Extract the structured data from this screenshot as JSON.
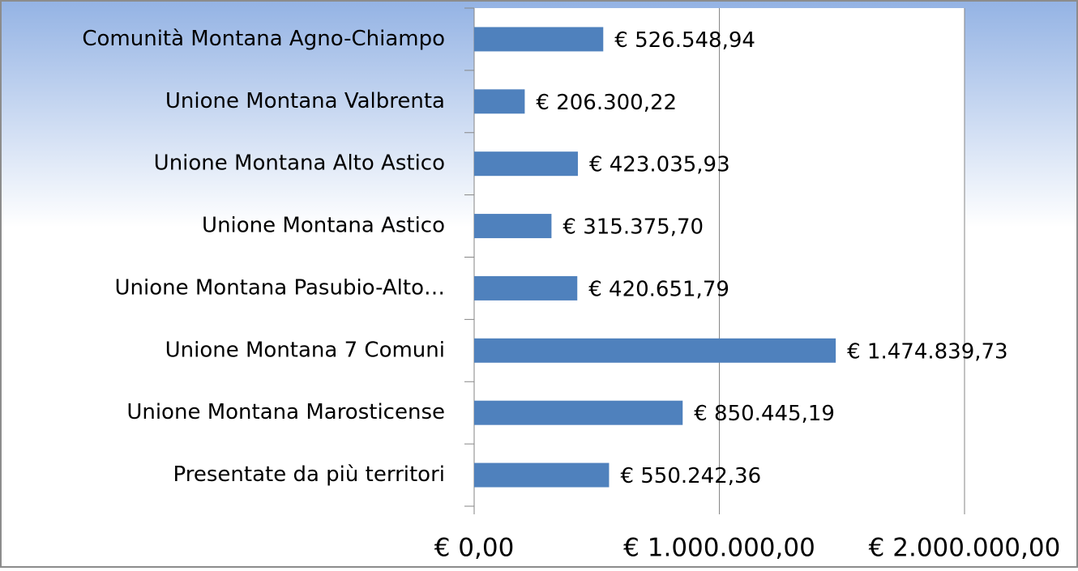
{
  "chart_data": {
    "type": "barh",
    "categories": [
      "Comunità Montana Agno-Chiampo",
      "Unione Montana Valbrenta",
      "Unione Montana Alto Astico",
      "Unione Montana Astico",
      "Unione Montana Pasubio-Alto…",
      "Unione Montana 7 Comuni",
      "Unione Montana Marosticense",
      "Presentate da più territori"
    ],
    "values": [
      526548.94,
      206300.22,
      423035.93,
      315375.7,
      420651.79,
      1474839.73,
      850445.19,
      550242.36
    ],
    "value_labels": [
      "€ 526.548,94",
      "€ 206.300,22",
      "€ 423.035,93",
      "€ 315.375,70",
      "€ 420.651,79",
      "€ 1.474.839,73",
      "€ 850.445,19",
      "€ 550.242,36"
    ],
    "color": "#4f81bd",
    "xlim": [
      0,
      2000000
    ],
    "xticks": [
      {
        "value": 0,
        "label": "€ 0,00"
      },
      {
        "value": 1000000,
        "label": "€ 1.000.000,00"
      },
      {
        "value": 2000000,
        "label": "€ 2.000.000,00"
      }
    ],
    "grid": true
  }
}
